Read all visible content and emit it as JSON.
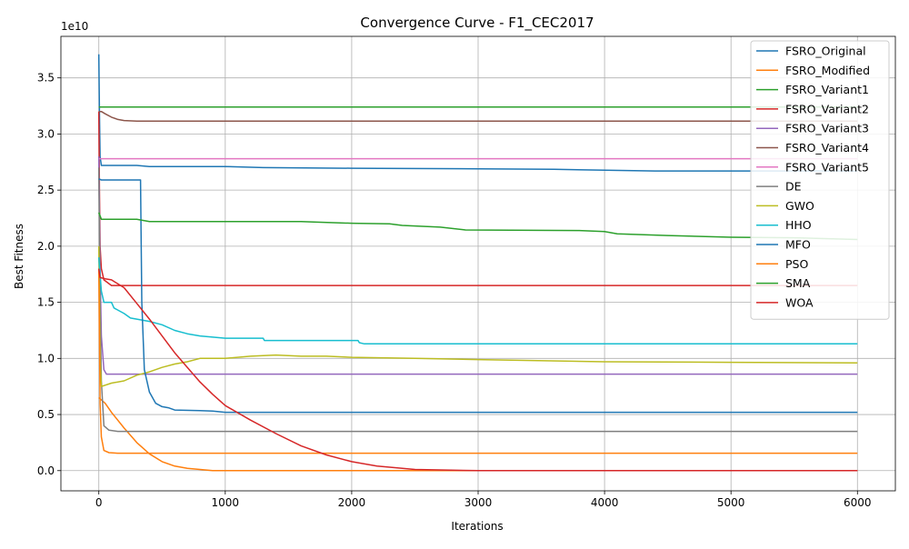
{
  "chart_data": {
    "type": "line",
    "title": "Convergence Curve - F1_CEC2017",
    "xlabel": "Iterations",
    "ylabel": "Best Fitness",
    "y_offset_label": "1e10",
    "xlim": [
      -300,
      6300
    ],
    "ylim": [
      -0.18,
      3.87
    ],
    "y_unit_multiplier": "1e10",
    "xticks": [
      0,
      1000,
      2000,
      3000,
      4000,
      5000,
      6000
    ],
    "xtick_labels": [
      "0",
      "1000",
      "2000",
      "3000",
      "4000",
      "5000",
      "6000"
    ],
    "yticks": [
      0.0,
      0.5,
      1.0,
      1.5,
      2.0,
      2.5,
      3.0,
      3.5
    ],
    "ytick_labels": [
      "0.0",
      "0.5",
      "1.0",
      "1.5",
      "2.0",
      "2.5",
      "3.0",
      "3.5"
    ],
    "grid": true,
    "legend_position": "top-right",
    "series": [
      {
        "name": "FSRO_Original",
        "color": "#1f77b4",
        "points": [
          [
            0,
            3.71
          ],
          [
            5,
            3.2
          ],
          [
            10,
            2.8
          ],
          [
            20,
            2.72
          ],
          [
            50,
            2.72
          ],
          [
            300,
            2.72
          ],
          [
            400,
            2.71
          ],
          [
            1000,
            2.71
          ],
          [
            1300,
            2.7
          ],
          [
            2000,
            2.695
          ],
          [
            3000,
            2.69
          ],
          [
            3600,
            2.685
          ],
          [
            4400,
            2.67
          ],
          [
            6000,
            2.67
          ]
        ]
      },
      {
        "name": "FSRO_Modified",
        "color": "#ff7f0e",
        "points": [
          [
            0,
            0.65
          ],
          [
            50,
            0.6
          ],
          [
            100,
            0.52
          ],
          [
            200,
            0.38
          ],
          [
            300,
            0.25
          ],
          [
            400,
            0.15
          ],
          [
            500,
            0.08
          ],
          [
            600,
            0.04
          ],
          [
            700,
            0.02
          ],
          [
            800,
            0.01
          ],
          [
            900,
            0.0
          ],
          [
            6000,
            0.0
          ]
        ]
      },
      {
        "name": "FSRO_Variant1",
        "color": "#2ca02c",
        "points": [
          [
            0,
            3.24
          ],
          [
            6000,
            3.24
          ]
        ]
      },
      {
        "name": "FSRO_Variant2",
        "color": "#d62728",
        "points": [
          [
            0,
            3.2
          ],
          [
            5,
            2.5
          ],
          [
            10,
            2.0
          ],
          [
            20,
            1.8
          ],
          [
            40,
            1.7
          ],
          [
            100,
            1.65
          ],
          [
            6000,
            1.65
          ]
        ]
      },
      {
        "name": "FSRO_Variant3",
        "color": "#9467bd",
        "points": [
          [
            0,
            2.8
          ],
          [
            10,
            1.8
          ],
          [
            20,
            1.2
          ],
          [
            40,
            0.9
          ],
          [
            60,
            0.86
          ],
          [
            6000,
            0.86
          ]
        ]
      },
      {
        "name": "FSRO_Variant4",
        "color": "#8c564b",
        "points": [
          [
            0,
            3.2
          ],
          [
            20,
            3.2
          ],
          [
            50,
            3.18
          ],
          [
            100,
            3.15
          ],
          [
            150,
            3.13
          ],
          [
            200,
            3.12
          ],
          [
            300,
            3.115
          ],
          [
            6000,
            3.115
          ]
        ]
      },
      {
        "name": "FSRO_Variant5",
        "color": "#e377c2",
        "points": [
          [
            0,
            2.78
          ],
          [
            6000,
            2.78
          ]
        ]
      },
      {
        "name": "DE",
        "color": "#7f7f7f",
        "points": [
          [
            0,
            2.7
          ],
          [
            10,
            1.5
          ],
          [
            20,
            0.8
          ],
          [
            40,
            0.4
          ],
          [
            80,
            0.36
          ],
          [
            150,
            0.35
          ],
          [
            6000,
            0.35
          ]
        ]
      },
      {
        "name": "GWO",
        "color": "#bcbd22",
        "points": [
          [
            0,
            2.0
          ],
          [
            10,
            1.0
          ],
          [
            20,
            0.75
          ],
          [
            100,
            0.78
          ],
          [
            200,
            0.8
          ],
          [
            300,
            0.85
          ],
          [
            400,
            0.88
          ],
          [
            500,
            0.92
          ],
          [
            600,
            0.95
          ],
          [
            700,
            0.97
          ],
          [
            800,
            1.0
          ],
          [
            1000,
            1.0
          ],
          [
            1200,
            1.02
          ],
          [
            1400,
            1.03
          ],
          [
            1600,
            1.02
          ],
          [
            1800,
            1.02
          ],
          [
            2000,
            1.01
          ],
          [
            2500,
            1.0
          ],
          [
            3000,
            0.99
          ],
          [
            4000,
            0.97
          ],
          [
            5000,
            0.965
          ],
          [
            6000,
            0.96
          ]
        ]
      },
      {
        "name": "HHO",
        "color": "#17becf",
        "points": [
          [
            0,
            1.9
          ],
          [
            20,
            1.6
          ],
          [
            40,
            1.5
          ],
          [
            100,
            1.5
          ],
          [
            120,
            1.45
          ],
          [
            200,
            1.4
          ],
          [
            250,
            1.36
          ],
          [
            300,
            1.35
          ],
          [
            400,
            1.33
          ],
          [
            500,
            1.3
          ],
          [
            600,
            1.25
          ],
          [
            700,
            1.22
          ],
          [
            800,
            1.2
          ],
          [
            900,
            1.19
          ],
          [
            1000,
            1.18
          ],
          [
            1300,
            1.18
          ],
          [
            1310,
            1.16
          ],
          [
            2050,
            1.16
          ],
          [
            2060,
            1.14
          ],
          [
            2100,
            1.13
          ],
          [
            6000,
            1.13
          ]
        ]
      },
      {
        "name": "MFO",
        "color": "#1f77b4",
        "points": [
          [
            0,
            2.6
          ],
          [
            20,
            2.59
          ],
          [
            330,
            2.59
          ],
          [
            340,
            1.5
          ],
          [
            360,
            0.9
          ],
          [
            400,
            0.7
          ],
          [
            450,
            0.6
          ],
          [
            500,
            0.57
          ],
          [
            550,
            0.56
          ],
          [
            600,
            0.54
          ],
          [
            800,
            0.535
          ],
          [
            900,
            0.53
          ],
          [
            1000,
            0.52
          ],
          [
            1500,
            0.52
          ],
          [
            6000,
            0.52
          ]
        ]
      },
      {
        "name": "PSO",
        "color": "#ff7f0e",
        "points": [
          [
            0,
            1.8
          ],
          [
            10,
            0.6
          ],
          [
            20,
            0.3
          ],
          [
            40,
            0.18
          ],
          [
            80,
            0.16
          ],
          [
            150,
            0.155
          ],
          [
            6000,
            0.155
          ]
        ]
      },
      {
        "name": "SMA",
        "color": "#2ca02c",
        "points": [
          [
            0,
            2.3
          ],
          [
            20,
            2.24
          ],
          [
            300,
            2.24
          ],
          [
            400,
            2.22
          ],
          [
            1600,
            2.22
          ],
          [
            1700,
            2.215
          ],
          [
            2000,
            2.205
          ],
          [
            2300,
            2.2
          ],
          [
            2400,
            2.185
          ],
          [
            2700,
            2.17
          ],
          [
            2900,
            2.145
          ],
          [
            3800,
            2.14
          ],
          [
            4000,
            2.13
          ],
          [
            4100,
            2.11
          ],
          [
            4500,
            2.095
          ],
          [
            5000,
            2.08
          ],
          [
            5500,
            2.075
          ],
          [
            6000,
            2.06
          ]
        ]
      },
      {
        "name": "WOA",
        "color": "#d62728",
        "points": [
          [
            0,
            1.8
          ],
          [
            10,
            1.72
          ],
          [
            50,
            1.71
          ],
          [
            100,
            1.7
          ],
          [
            200,
            1.63
          ],
          [
            300,
            1.49
          ],
          [
            400,
            1.35
          ],
          [
            500,
            1.2
          ],
          [
            600,
            1.05
          ],
          [
            700,
            0.92
          ],
          [
            800,
            0.79
          ],
          [
            900,
            0.68
          ],
          [
            1000,
            0.58
          ],
          [
            1200,
            0.45
          ],
          [
            1400,
            0.33
          ],
          [
            1600,
            0.22
          ],
          [
            1800,
            0.14
          ],
          [
            2000,
            0.08
          ],
          [
            2200,
            0.04
          ],
          [
            2500,
            0.01
          ],
          [
            3000,
            0.0
          ],
          [
            6000,
            0.0
          ]
        ]
      }
    ]
  }
}
